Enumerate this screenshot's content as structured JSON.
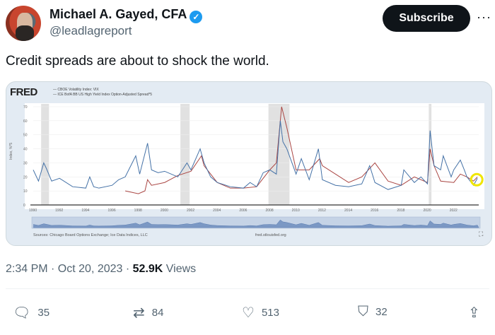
{
  "author": {
    "name": "Michael A. Gayed, CFA",
    "handle": "@leadlagreport",
    "verified_icon": "✓"
  },
  "subscribe_label": "Subscribe",
  "more_icon": "···",
  "tweet_text": "Credit spreads are about to shock the world.",
  "chart": {
    "logo": "FRED",
    "legend": [
      "— CBOE Volatility Index: VIX",
      "— ICE BofA BB US High Yield Index Option-Adjusted Spread*5"
    ],
    "ylabel": "Index, %*5",
    "source": "Sources: Chicago Board Options Exchange; Ice Data Indices, LLC",
    "url": "fred.stlouisfed.org",
    "colors": {
      "vix": "#4572a7",
      "spread": "#aa4643"
    }
  },
  "chart_data": {
    "type": "line",
    "xlim": [
      1990,
      2023.9
    ],
    "ylim": [
      0,
      70
    ],
    "yticks": [
      0,
      10,
      20,
      30,
      40,
      50,
      60,
      70
    ],
    "xticks": [
      1990,
      1992,
      1994,
      1996,
      1998,
      2000,
      2002,
      2004,
      2006,
      2008,
      2010,
      2012,
      2014,
      2016,
      2018,
      2020,
      2022
    ],
    "recessions": [
      [
        1990.6,
        1991.2
      ],
      [
        2001.2,
        2001.9
      ],
      [
        2007.9,
        2009.5
      ],
      [
        2020.1,
        2020.3
      ]
    ],
    "series": [
      {
        "name": "CBOE Volatility Index: VIX",
        "points": [
          [
            1990,
            25
          ],
          [
            1990.4,
            17
          ],
          [
            1990.8,
            30
          ],
          [
            1991,
            26
          ],
          [
            1991.4,
            17
          ],
          [
            1992,
            19
          ],
          [
            1993,
            13
          ],
          [
            1994,
            12
          ],
          [
            1994.3,
            20
          ],
          [
            1994.6,
            13
          ],
          [
            1995,
            12
          ],
          [
            1996,
            14
          ],
          [
            1996.5,
            18
          ],
          [
            1997,
            20
          ],
          [
            1997.8,
            35
          ],
          [
            1998.1,
            22
          ],
          [
            1998.7,
            44
          ],
          [
            1999,
            25
          ],
          [
            1999.5,
            23
          ],
          [
            2000,
            24
          ],
          [
            2000.5,
            22
          ],
          [
            2001,
            20
          ],
          [
            2001.7,
            30
          ],
          [
            2002,
            25
          ],
          [
            2002.7,
            40
          ],
          [
            2003,
            30
          ],
          [
            2003.5,
            20
          ],
          [
            2004,
            16
          ],
          [
            2005,
            13
          ],
          [
            2006,
            12
          ],
          [
            2006.5,
            16
          ],
          [
            2007,
            13
          ],
          [
            2007.5,
            23
          ],
          [
            2008,
            25
          ],
          [
            2008.5,
            22
          ],
          [
            2008.8,
            60
          ],
          [
            2009,
            45
          ],
          [
            2009.3,
            40
          ],
          [
            2010,
            22
          ],
          [
            2010.4,
            33
          ],
          [
            2011,
            18
          ],
          [
            2011.7,
            40
          ],
          [
            2012,
            18
          ],
          [
            2013,
            14
          ],
          [
            2014,
            13
          ],
          [
            2015,
            15
          ],
          [
            2015.6,
            28
          ],
          [
            2016,
            16
          ],
          [
            2017,
            11
          ],
          [
            2018,
            14
          ],
          [
            2018.2,
            25
          ],
          [
            2019,
            16
          ],
          [
            2019.5,
            20
          ],
          [
            2020,
            15
          ],
          [
            2020.2,
            53
          ],
          [
            2020.5,
            28
          ],
          [
            2021,
            25
          ],
          [
            2021.2,
            35
          ],
          [
            2021.8,
            20
          ],
          [
            2022,
            25
          ],
          [
            2022.5,
            32
          ],
          [
            2022.8,
            25
          ],
          [
            2023,
            20
          ],
          [
            2023.5,
            14
          ],
          [
            2023.8,
            19
          ]
        ]
      },
      {
        "name": "ICE BofA BB US High Yield Index Option-Adjusted Spread*5",
        "points": [
          [
            1997,
            10
          ],
          [
            1998,
            8
          ],
          [
            1998.5,
            10
          ],
          [
            1998.7,
            18
          ],
          [
            1999,
            14
          ],
          [
            2000,
            16
          ],
          [
            2001,
            21
          ],
          [
            2002,
            24
          ],
          [
            2002.8,
            35
          ],
          [
            2003,
            28
          ],
          [
            2004,
            16
          ],
          [
            2005,
            12
          ],
          [
            2006,
            12
          ],
          [
            2007,
            13
          ],
          [
            2008,
            25
          ],
          [
            2008.5,
            30
          ],
          [
            2008.9,
            70
          ],
          [
            2009.3,
            55
          ],
          [
            2010,
            25
          ],
          [
            2011,
            25
          ],
          [
            2011.8,
            33
          ],
          [
            2012,
            28
          ],
          [
            2013,
            22
          ],
          [
            2014,
            16
          ],
          [
            2015,
            20
          ],
          [
            2016,
            30
          ],
          [
            2017,
            17
          ],
          [
            2018,
            14
          ],
          [
            2019,
            20
          ],
          [
            2020,
            16
          ],
          [
            2020.2,
            40
          ],
          [
            2020.5,
            28
          ],
          [
            2021,
            17
          ],
          [
            2022,
            16
          ],
          [
            2022.5,
            22
          ],
          [
            2023,
            20
          ],
          [
            2023.5,
            17
          ],
          [
            2023.8,
            20
          ]
        ]
      }
    ]
  },
  "timestamp": "2:34 PM · Oct 20, 2023 · ",
  "views_count": "52.9K",
  "views_label": " Views",
  "actions": {
    "replies": "35",
    "reposts": "84",
    "likes": "513",
    "bookmarks": "32"
  }
}
